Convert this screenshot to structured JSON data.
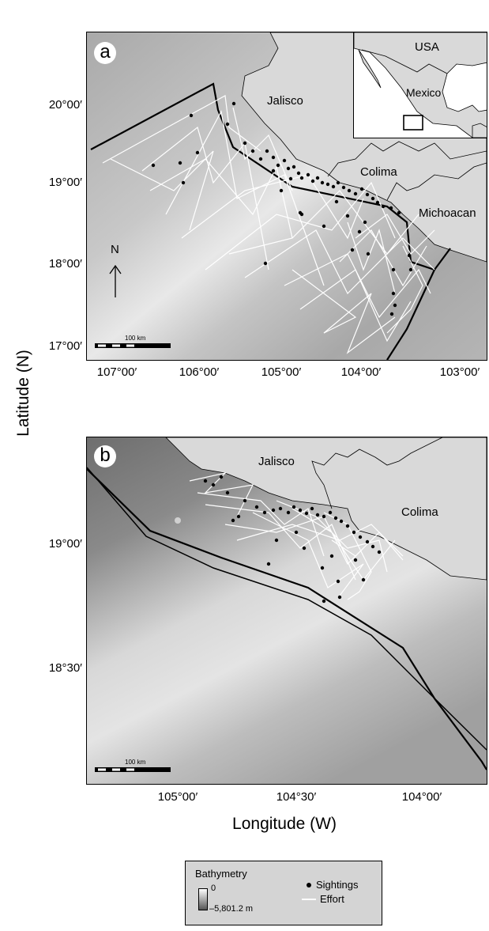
{
  "panel_a": {
    "letter": "a",
    "y_ticks": [
      "20°00′",
      "19°00′",
      "18°00′",
      "17°00′"
    ],
    "x_ticks": [
      "107°00′",
      "106°00′",
      "105°00′",
      "104°00′",
      "103°00′"
    ],
    "labels": {
      "jalisco": "Jalisco",
      "colima": "Colima",
      "michoacan": "Michoacan"
    },
    "north_arrow": "N",
    "scale_bar": "100 km",
    "inset": {
      "usa": "USA",
      "mexico": "Mexico"
    }
  },
  "panel_b": {
    "letter": "b",
    "y_ticks": [
      "19°00′",
      "18°30′"
    ],
    "x_ticks": [
      "105°00′",
      "104°30′",
      "104°00′"
    ],
    "labels": {
      "jalisco": "Jalisco",
      "colima": "Colima"
    },
    "scale_bar": "100 km"
  },
  "axes": {
    "y_title": "Latitude (N)",
    "x_title": "Longitude (W)"
  },
  "legend": {
    "title": "Bathymetry",
    "gradient_max": "0",
    "gradient_min": "–5,801.2 m",
    "sightings": "Sightings",
    "effort": "Effort"
  },
  "colors": {
    "land": "#d9d9d9",
    "sea_light": "#e6e6e6",
    "sea_dark": "#8c8c8c",
    "effort": "#ffffff",
    "sightings": "#000000",
    "boundary": "#000000"
  }
}
